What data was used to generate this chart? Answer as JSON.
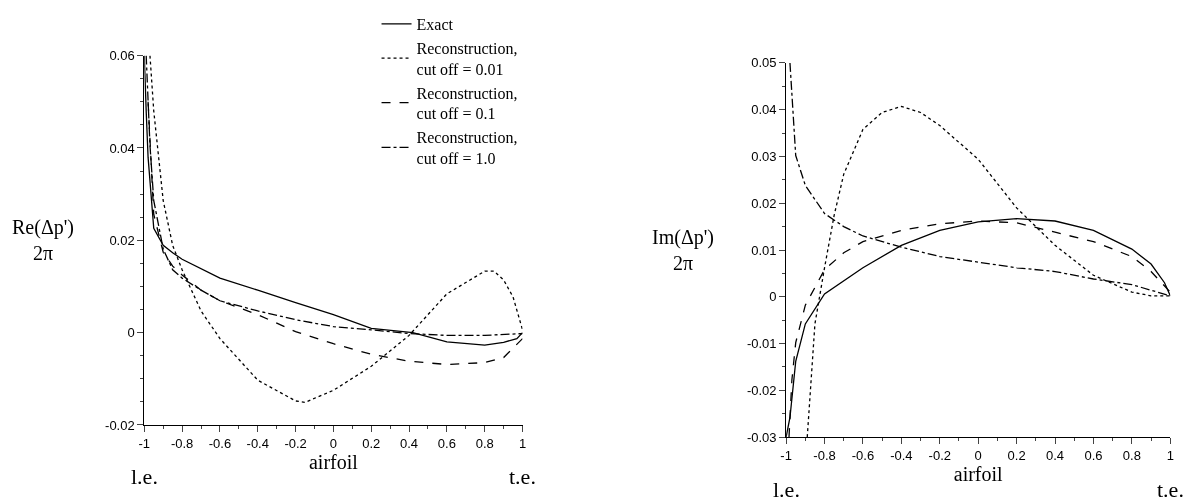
{
  "chart_data": [
    {
      "type": "line",
      "xlabel": "airfoil",
      "ylabel": "Re(Δp')\n2π",
      "xlim": [
        -1,
        1
      ],
      "xticks": [
        -1,
        -0.8,
        -0.6,
        -0.4,
        -0.2,
        0,
        0.2,
        0.4,
        0.6,
        0.8,
        1
      ],
      "ylim": [
        -0.02,
        0.06
      ],
      "yticks": [
        -0.02,
        0,
        0.02,
        0.04,
        0.06
      ],
      "legend": "top right",
      "annotations": [
        "l.e.",
        "t.e."
      ],
      "series": [
        {
          "name": "Exact",
          "color": "#000000",
          "line_style": "solid",
          "x": [
            -1,
            -0.99,
            -0.98,
            -0.95,
            -0.9,
            -0.85,
            -0.8,
            -0.6,
            -0.4,
            -0.2,
            0,
            0.2,
            0.42,
            0.6,
            0.8,
            0.9,
            0.97,
            1
          ],
          "values": [
            0.06,
            0.048,
            0.038,
            0.0226,
            0.0189,
            0.0173,
            0.0159,
            0.0118,
            0.0092,
            0.0065,
            0.0039,
            0.0009,
            0,
            -0.002,
            -0.0027,
            -0.0021,
            -0.0013,
            0
          ]
        },
        {
          "name": "Reconstruction,\ncut off = 0.01",
          "color": "#000000",
          "line_style": "dotted",
          "x": [
            -0.97,
            -0.95,
            -0.9,
            -0.85,
            -0.8,
            -0.7,
            -0.6,
            -0.4,
            -0.2,
            -0.15,
            0,
            0.2,
            0.4,
            0.6,
            0.8,
            0.85,
            0.9,
            0.95,
            1
          ],
          "values": [
            0.06,
            0.048,
            0.0286,
            0.0189,
            0.0136,
            0.0047,
            -0.0013,
            -0.0103,
            -0.0148,
            -0.0151,
            -0.0125,
            -0.0073,
            -0.0006,
            0.0084,
            0.0133,
            0.0133,
            0.0114,
            0.0077,
            0.0006
          ]
        },
        {
          "name": "Reconstruction,\ncut off = 0.1",
          "color": "#000000",
          "line_style": "dashed",
          "x": [
            -0.98,
            -0.95,
            -0.9,
            -0.85,
            -0.8,
            -0.7,
            -0.6,
            -0.4,
            -0.2,
            0,
            0.2,
            0.4,
            0.6,
            0.8,
            0.9,
            1
          ],
          "values": [
            0.05,
            0.0256,
            0.0174,
            0.0144,
            0.0125,
            0.0092,
            0.0069,
            0.0039,
            0.0002,
            -0.0024,
            -0.0047,
            -0.0062,
            -0.0069,
            -0.0065,
            -0.0054,
            -0.0013
          ]
        },
        {
          "name": "Reconstruction,\ncut off = 1.0",
          "color": "#000000",
          "line_style": "dashdot",
          "x": [
            -0.99,
            -0.97,
            -0.95,
            -0.9,
            -0.85,
            -0.8,
            -0.7,
            -0.6,
            -0.4,
            -0.2,
            0,
            0.2,
            0.4,
            0.6,
            0.8,
            1
          ],
          "values": [
            0.06,
            0.0406,
            0.0286,
            0.0181,
            0.0136,
            0.0118,
            0.0092,
            0.0069,
            0.0047,
            0.0028,
            0.0013,
            0.0006,
            -0.0002,
            -0.0006,
            -0.0006,
            -0.0002
          ]
        }
      ]
    },
    {
      "type": "line",
      "xlabel": "airfoil",
      "ylabel": "Im(Δp')\n2π",
      "xlim": [
        -1,
        1
      ],
      "xticks": [
        -1,
        -0.8,
        -0.6,
        -0.4,
        -0.2,
        0,
        0.2,
        0.4,
        0.6,
        0.8,
        1
      ],
      "ylim": [
        -0.03,
        0.05
      ],
      "yticks": [
        -0.03,
        -0.02,
        -0.01,
        0,
        0.01,
        0.02,
        0.03,
        0.04,
        0.05
      ],
      "annotations": [
        "l.e.",
        "t.e."
      ],
      "series": [
        {
          "color": "#000000",
          "line_style": "solid",
          "x": [
            -1,
            -0.98,
            -0.95,
            -0.9,
            -0.8,
            -0.6,
            -0.4,
            -0.2,
            0,
            0.2,
            0.4,
            0.6,
            0.8,
            0.9,
            0.97,
            1
          ],
          "values": [
            -0.03,
            -0.0258,
            -0.0138,
            -0.0058,
            0.0006,
            0.0062,
            0.011,
            0.0142,
            0.016,
            0.0167,
            0.0162,
            0.0142,
            0.0102,
            0.007,
            0.003,
            0.0002
          ]
        },
        {
          "color": "#000000",
          "line_style": "dotted",
          "x": [
            -0.89,
            -0.85,
            -0.8,
            -0.75,
            -0.7,
            -0.6,
            -0.5,
            -0.4,
            -0.3,
            -0.2,
            0,
            0.2,
            0.4,
            0.6,
            0.8,
            0.9,
            1
          ],
          "values": [
            -0.03,
            -0.0058,
            0.0062,
            0.0174,
            0.0262,
            0.0358,
            0.0394,
            0.0407,
            0.0394,
            0.0366,
            0.0294,
            0.019,
            0.011,
            0.0046,
            0.001,
            0.0002,
            0.0002
          ]
        },
        {
          "color": "#000000",
          "line_style": "dashed",
          "x": [
            -0.985,
            -0.97,
            -0.95,
            -0.9,
            -0.8,
            -0.7,
            -0.6,
            -0.4,
            -0.2,
            0,
            0.2,
            0.4,
            0.6,
            0.8,
            0.9,
            1
          ],
          "values": [
            -0.03,
            -0.0178,
            -0.0098,
            -0.0018,
            0.0058,
            0.0094,
            0.0118,
            0.0142,
            0.0156,
            0.0162,
            0.0158,
            0.0138,
            0.0118,
            0.0086,
            0.0054,
            0.001
          ]
        },
        {
          "color": "#000000",
          "line_style": "dashdot",
          "x": [
            -0.98,
            -0.95,
            -0.9,
            -0.8,
            -0.7,
            -0.6,
            -0.4,
            -0.2,
            0,
            0.2,
            0.4,
            0.6,
            0.8,
            1
          ],
          "values": [
            0.05,
            0.0302,
            0.0238,
            0.0178,
            0.015,
            0.013,
            0.0106,
            0.0086,
            0.0074,
            0.0062,
            0.0054,
            0.0038,
            0.0026,
            0.0002
          ]
        }
      ]
    }
  ]
}
